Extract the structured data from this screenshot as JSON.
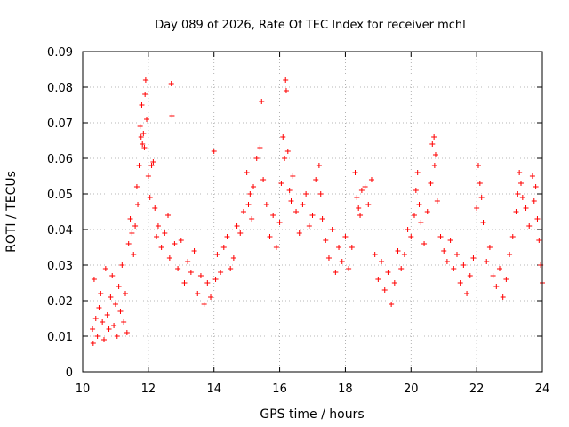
{
  "chart_data": {
    "type": "scatter",
    "title": "Day 089 of 2026, Rate Of TEC Index for receiver mchl",
    "xlabel": "GPS time / hours",
    "ylabel": "ROTI / TECUs",
    "xlim": [
      10,
      24
    ],
    "ylim": [
      0,
      0.09
    ],
    "x_ticks": [
      "10",
      "12",
      "14",
      "16",
      "18",
      "20",
      "22",
      "24"
    ],
    "y_ticks": [
      "0",
      "0.01",
      "0.02",
      "0.03",
      "0.04",
      "0.05",
      "0.06",
      "0.07",
      "0.08",
      "0.09"
    ],
    "grid": true,
    "marker": "+",
    "color": "#ff0000",
    "series": [
      {
        "points": [
          [
            10.3,
            0.012
          ],
          [
            10.32,
            0.008
          ],
          [
            10.35,
            0.026
          ],
          [
            10.4,
            0.015
          ],
          [
            10.45,
            0.01
          ],
          [
            10.5,
            0.018
          ],
          [
            10.55,
            0.022
          ],
          [
            10.6,
            0.014
          ],
          [
            10.65,
            0.009
          ],
          [
            10.7,
            0.029
          ],
          [
            10.75,
            0.016
          ],
          [
            10.8,
            0.012
          ],
          [
            10.85,
            0.021
          ],
          [
            10.9,
            0.027
          ],
          [
            10.95,
            0.013
          ],
          [
            11.0,
            0.019
          ],
          [
            11.05,
            0.01
          ],
          [
            11.1,
            0.024
          ],
          [
            11.15,
            0.017
          ],
          [
            11.2,
            0.03
          ],
          [
            11.25,
            0.014
          ],
          [
            11.3,
            0.022
          ],
          [
            11.35,
            0.011
          ],
          [
            11.4,
            0.036
          ],
          [
            11.45,
            0.043
          ],
          [
            11.5,
            0.039
          ],
          [
            11.55,
            0.033
          ],
          [
            11.6,
            0.041
          ],
          [
            11.65,
            0.052
          ],
          [
            11.68,
            0.047
          ],
          [
            11.72,
            0.058
          ],
          [
            11.75,
            0.069
          ],
          [
            11.78,
            0.066
          ],
          [
            11.8,
            0.075
          ],
          [
            11.82,
            0.064
          ],
          [
            11.85,
            0.067
          ],
          [
            11.88,
            0.063
          ],
          [
            11.9,
            0.078
          ],
          [
            11.92,
            0.082
          ],
          [
            11.95,
            0.071
          ],
          [
            12.0,
            0.055
          ],
          [
            12.05,
            0.049
          ],
          [
            12.1,
            0.058
          ],
          [
            12.15,
            0.059
          ],
          [
            12.2,
            0.046
          ],
          [
            12.25,
            0.038
          ],
          [
            12.3,
            0.041
          ],
          [
            12.4,
            0.035
          ],
          [
            12.5,
            0.039
          ],
          [
            12.6,
            0.044
          ],
          [
            12.65,
            0.032
          ],
          [
            12.7,
            0.081
          ],
          [
            12.72,
            0.072
          ],
          [
            12.8,
            0.036
          ],
          [
            12.9,
            0.029
          ],
          [
            13.0,
            0.037
          ],
          [
            13.1,
            0.025
          ],
          [
            13.2,
            0.031
          ],
          [
            13.3,
            0.028
          ],
          [
            13.4,
            0.034
          ],
          [
            13.5,
            0.022
          ],
          [
            13.6,
            0.027
          ],
          [
            13.7,
            0.019
          ],
          [
            13.8,
            0.025
          ],
          [
            13.9,
            0.021
          ],
          [
            14.0,
            0.062
          ],
          [
            14.05,
            0.026
          ],
          [
            14.1,
            0.033
          ],
          [
            14.2,
            0.028
          ],
          [
            14.3,
            0.035
          ],
          [
            14.4,
            0.038
          ],
          [
            14.5,
            0.029
          ],
          [
            14.6,
            0.032
          ],
          [
            14.7,
            0.041
          ],
          [
            14.8,
            0.039
          ],
          [
            14.9,
            0.045
          ],
          [
            15.0,
            0.056
          ],
          [
            15.05,
            0.047
          ],
          [
            15.1,
            0.05
          ],
          [
            15.15,
            0.043
          ],
          [
            15.2,
            0.052
          ],
          [
            15.3,
            0.06
          ],
          [
            15.4,
            0.063
          ],
          [
            15.45,
            0.076
          ],
          [
            15.5,
            0.054
          ],
          [
            15.6,
            0.047
          ],
          [
            15.7,
            0.038
          ],
          [
            15.8,
            0.044
          ],
          [
            15.9,
            0.035
          ],
          [
            16.0,
            0.042
          ],
          [
            16.05,
            0.053
          ],
          [
            16.1,
            0.066
          ],
          [
            16.15,
            0.06
          ],
          [
            16.18,
            0.082
          ],
          [
            16.2,
            0.079
          ],
          [
            16.25,
            0.062
          ],
          [
            16.3,
            0.051
          ],
          [
            16.35,
            0.048
          ],
          [
            16.4,
            0.055
          ],
          [
            16.5,
            0.045
          ],
          [
            16.6,
            0.039
          ],
          [
            16.7,
            0.047
          ],
          [
            16.8,
            0.05
          ],
          [
            16.9,
            0.041
          ],
          [
            17.0,
            0.044
          ],
          [
            17.1,
            0.054
          ],
          [
            17.2,
            0.058
          ],
          [
            17.25,
            0.05
          ],
          [
            17.3,
            0.043
          ],
          [
            17.4,
            0.037
          ],
          [
            17.5,
            0.032
          ],
          [
            17.6,
            0.04
          ],
          [
            17.7,
            0.028
          ],
          [
            17.8,
            0.035
          ],
          [
            17.9,
            0.031
          ],
          [
            18.0,
            0.038
          ],
          [
            18.1,
            0.029
          ],
          [
            18.2,
            0.035
          ],
          [
            18.3,
            0.056
          ],
          [
            18.35,
            0.049
          ],
          [
            18.4,
            0.046
          ],
          [
            18.45,
            0.044
          ],
          [
            18.5,
            0.051
          ],
          [
            18.6,
            0.052
          ],
          [
            18.7,
            0.047
          ],
          [
            18.8,
            0.054
          ],
          [
            18.9,
            0.033
          ],
          [
            19.0,
            0.026
          ],
          [
            19.1,
            0.031
          ],
          [
            19.2,
            0.023
          ],
          [
            19.3,
            0.028
          ],
          [
            19.4,
            0.019
          ],
          [
            19.5,
            0.025
          ],
          [
            19.6,
            0.034
          ],
          [
            19.7,
            0.029
          ],
          [
            19.8,
            0.033
          ],
          [
            19.9,
            0.04
          ],
          [
            20.0,
            0.038
          ],
          [
            20.1,
            0.044
          ],
          [
            20.15,
            0.051
          ],
          [
            20.2,
            0.056
          ],
          [
            20.25,
            0.047
          ],
          [
            20.3,
            0.042
          ],
          [
            20.4,
            0.036
          ],
          [
            20.5,
            0.045
          ],
          [
            20.6,
            0.053
          ],
          [
            20.65,
            0.064
          ],
          [
            20.7,
            0.066
          ],
          [
            20.72,
            0.058
          ],
          [
            20.75,
            0.061
          ],
          [
            20.8,
            0.048
          ],
          [
            20.9,
            0.038
          ],
          [
            21.0,
            0.034
          ],
          [
            21.1,
            0.031
          ],
          [
            21.2,
            0.037
          ],
          [
            21.3,
            0.029
          ],
          [
            21.4,
            0.033
          ],
          [
            21.5,
            0.025
          ],
          [
            21.6,
            0.03
          ],
          [
            21.7,
            0.022
          ],
          [
            21.8,
            0.027
          ],
          [
            21.9,
            0.032
          ],
          [
            22.0,
            0.046
          ],
          [
            22.05,
            0.058
          ],
          [
            22.1,
            0.053
          ],
          [
            22.15,
            0.049
          ],
          [
            22.2,
            0.042
          ],
          [
            22.3,
            0.031
          ],
          [
            22.4,
            0.035
          ],
          [
            22.5,
            0.027
          ],
          [
            22.6,
            0.024
          ],
          [
            22.7,
            0.029
          ],
          [
            22.8,
            0.021
          ],
          [
            22.9,
            0.026
          ],
          [
            23.0,
            0.033
          ],
          [
            23.1,
            0.038
          ],
          [
            23.2,
            0.045
          ],
          [
            23.25,
            0.05
          ],
          [
            23.3,
            0.056
          ],
          [
            23.35,
            0.053
          ],
          [
            23.4,
            0.049
          ],
          [
            23.5,
            0.046
          ],
          [
            23.6,
            0.041
          ],
          [
            23.7,
            0.055
          ],
          [
            23.75,
            0.048
          ],
          [
            23.8,
            0.052
          ],
          [
            23.85,
            0.043
          ],
          [
            23.9,
            0.037
          ],
          [
            23.95,
            0.03
          ],
          [
            24.0,
            0.025
          ]
        ]
      }
    ]
  }
}
